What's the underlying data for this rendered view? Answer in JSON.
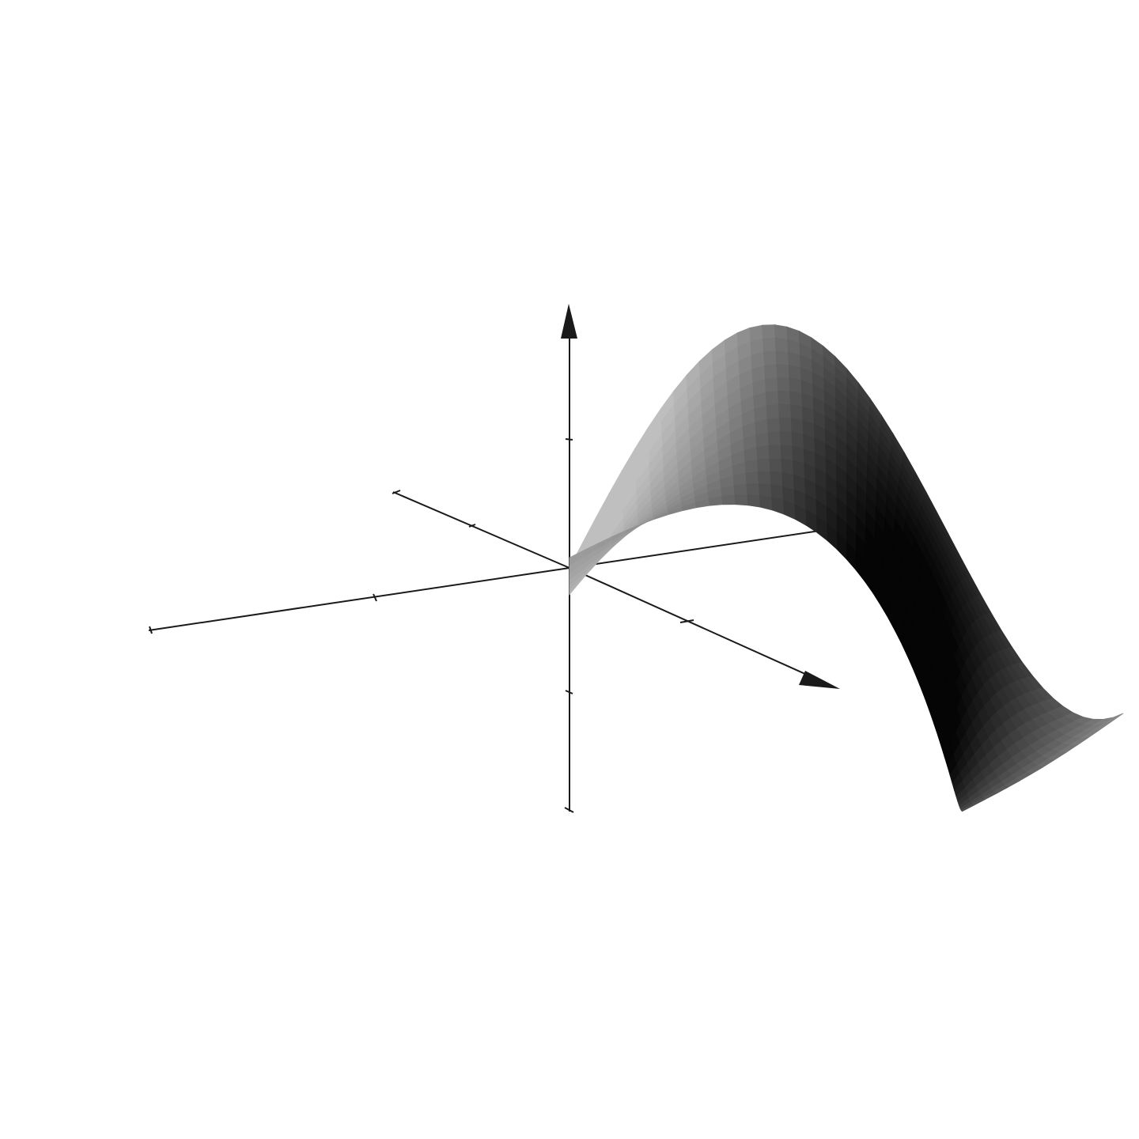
{
  "figure": {
    "background": "#ffffff",
    "axis_color": "#1a1a1a",
    "surface_shading": "grayscale"
  },
  "axes": [
    {
      "name": "horizontal-axis",
      "arrow": true,
      "ticks": 3
    },
    {
      "name": "depth-axis",
      "arrow": true,
      "ticks": 3
    },
    {
      "name": "vertical-axis",
      "arrow": true,
      "ticks": 3
    }
  ],
  "surface": {
    "description_shape": "wave",
    "color_light": "#b4b4b4",
    "color_dark": "#050505"
  }
}
